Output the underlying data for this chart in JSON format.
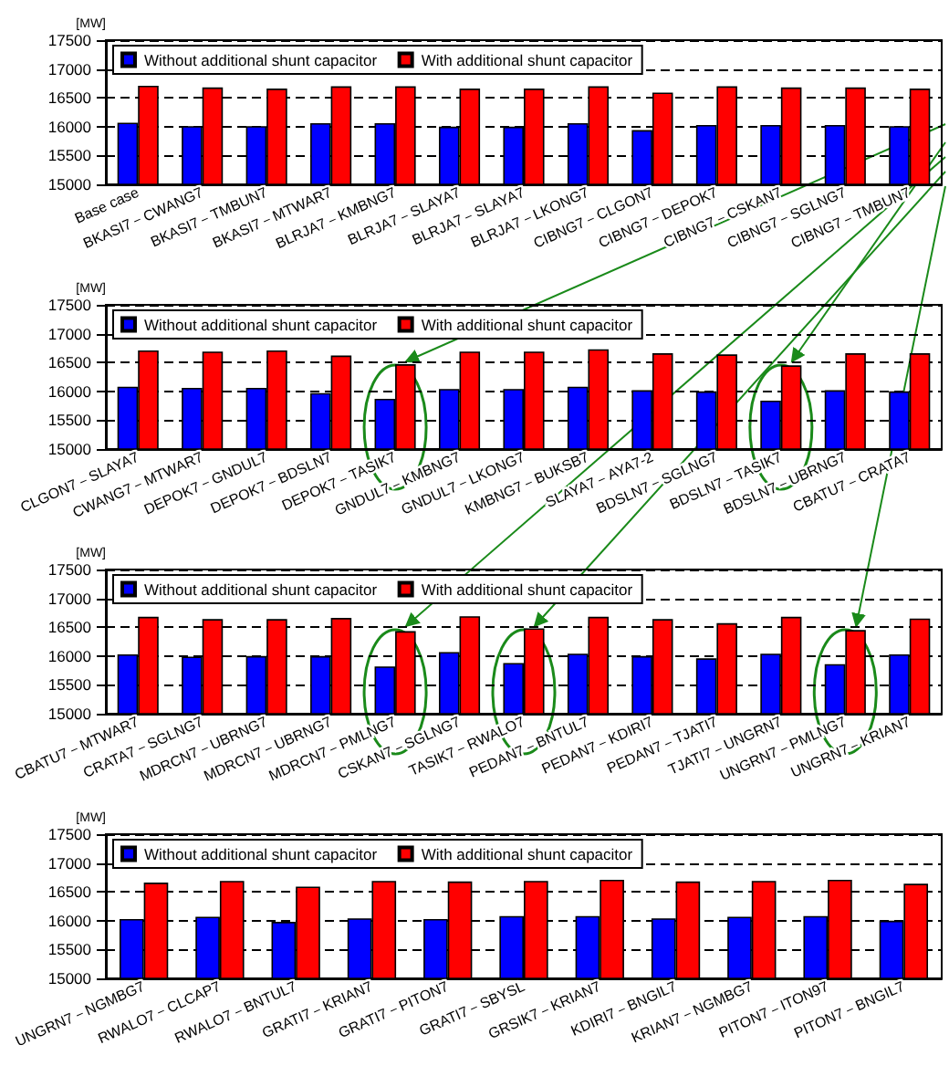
{
  "chart_data": [
    {
      "type": "bar",
      "ylabel": "[MW]",
      "categories": [
        "Base case",
        "BKASI7－CWANG7",
        "BKASI7－TMBUN7",
        "BKASI7－MTWAR7",
        "BLRJA7－KMBNG7",
        "BLRJA7－SLAYA7",
        "BLRJA7－SLAYA7",
        "BLRJA7－LKONG7",
        "CIBNG7－CLGON7",
        "CIBNG7－DEPOK7",
        "CIBNG7－CSKAN7",
        "CIBNG7－SGLNG7",
        "CIBNG7－TMBUN7"
      ],
      "series": [
        {
          "name": "Without additional shunt capacitor",
          "color": "#0000ff",
          "values": [
            16070,
            16010,
            16010,
            16060,
            16060,
            16000,
            16000,
            16060,
            15940,
            16030,
            16030,
            16030,
            16010
          ]
        },
        {
          "name": "With additional shunt capacitor",
          "color": "#ff0000",
          "values": [
            16710,
            16680,
            16660,
            16700,
            16700,
            16660,
            16660,
            16700,
            16590,
            16700,
            16680,
            16680,
            16660
          ]
        }
      ],
      "ylim": [
        15000,
        17500
      ],
      "yticks": [
        15000,
        15500,
        16000,
        16500,
        17000,
        17500
      ],
      "grid": "y",
      "legend": "top left"
    },
    {
      "type": "bar",
      "ylabel": "[MW]",
      "categories": [
        "CLGON7－SLAYA7",
        "CWANG7－MTWAR7",
        "DEPOK7－GNDUL7",
        "DEPOK7－BDSLN7",
        "DEPOK7－TASIK7",
        "GNDUL7－KMBNG7",
        "GNDUL7－LKONG7",
        "KMBNG7－BUKSB7",
        "SLAYA7－AYA7-2",
        "BDSLN7－SGLNG7",
        "BDSLN7－TASIK7",
        "BDSLN7－UBRNG7",
        "CBATU7－CRATA7"
      ],
      "series": [
        {
          "name": "Without additional shunt capacitor",
          "color": "#0000ff",
          "values": [
            16080,
            16060,
            16060,
            15970,
            15870,
            16040,
            16040,
            16080,
            16020,
            16000,
            15840,
            16020,
            16000
          ]
        },
        {
          "name": "With additional shunt capacitor",
          "color": "#ff0000",
          "values": [
            16710,
            16690,
            16710,
            16620,
            16470,
            16690,
            16690,
            16730,
            16660,
            16640,
            16450,
            16660,
            16660
          ]
        }
      ],
      "ylim": [
        15000,
        17500
      ],
      "yticks": [
        15000,
        15500,
        16000,
        16500,
        17000,
        17500
      ],
      "grid": "y",
      "legend": "top left"
    },
    {
      "type": "bar",
      "ylabel": "[MW]",
      "categories": [
        "CBATU7－MTWAR7",
        "CRATA7－SGLNG7",
        "MDRCN7－UBRNG7",
        "MDRCN7－UBRNG7",
        "MDRCN7－PMLNG7",
        "CSKAN7－SGLNG7",
        "TASIK7－RWALO7",
        "PEDAN7－BNTUL7",
        "PEDAN7－KDIRI7",
        "PEDAN7－TJATI7",
        "TJATI7－UNGRN7",
        "UNGRN7－PMLNG7",
        "UNGRN7－KRIAN7"
      ],
      "series": [
        {
          "name": "Without additional shunt capacitor",
          "color": "#0000ff",
          "values": [
            16030,
            15990,
            16000,
            16000,
            15820,
            16070,
            15880,
            16040,
            16000,
            15960,
            16040,
            15860,
            16030
          ]
        },
        {
          "name": "With additional shunt capacitor",
          "color": "#ff0000",
          "values": [
            16680,
            16640,
            16640,
            16660,
            16430,
            16690,
            16480,
            16680,
            16640,
            16570,
            16680,
            16450,
            16650
          ]
        }
      ],
      "ylim": [
        15000,
        17500
      ],
      "yticks": [
        15000,
        15500,
        16000,
        16500,
        17000,
        17500
      ],
      "grid": "y",
      "legend": "top left"
    },
    {
      "type": "bar",
      "ylabel": "[MW]",
      "categories": [
        "UNGRN7－NGMBG7",
        "RWALO7－CLCAP7",
        "RWALO7－BNTUL7",
        "GRATI7－KRIAN7",
        "GRATI7－PITON7",
        "GRATI7－SBYSL",
        "GRSIK7－KRIAN7",
        "KDIRI7－BNGIL7",
        "KRIAN7－NGMBG7",
        "PITON7－ITON97",
        "PITON7－BNGIL7"
      ],
      "series": [
        {
          "name": "Without additional shunt capacitor",
          "color": "#0000ff",
          "values": [
            16030,
            16070,
            15980,
            16040,
            16030,
            16080,
            16080,
            16040,
            16070,
            16080,
            16000
          ]
        },
        {
          "name": "With additional shunt capacitor",
          "color": "#ff0000",
          "values": [
            16660,
            16690,
            16590,
            16690,
            16680,
            16690,
            16710,
            16680,
            16690,
            16710,
            16640
          ]
        }
      ],
      "ylim": [
        15000,
        17500
      ],
      "yticks": [
        15000,
        15500,
        16000,
        16500,
        17000,
        17500
      ],
      "grid": "y",
      "legend": "top left"
    }
  ]
}
